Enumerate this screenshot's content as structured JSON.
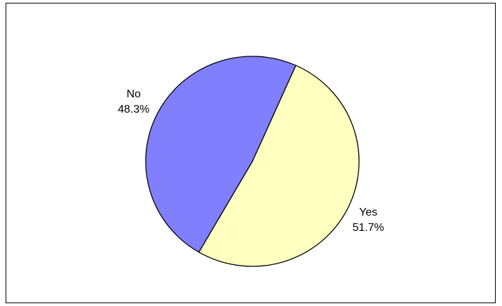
{
  "chart_data": {
    "type": "pie",
    "title": "",
    "slices": [
      {
        "label": "Yes",
        "value": 51.7,
        "value_label": "51.7%",
        "color": "#FFFFC0"
      },
      {
        "label": "No",
        "value": 48.3,
        "value_label": "48.3%",
        "color": "#8080FF"
      }
    ],
    "start_angle_deg": 24,
    "direction": "clockwise",
    "outline_color": "#000000",
    "legend": "none",
    "border": true
  }
}
